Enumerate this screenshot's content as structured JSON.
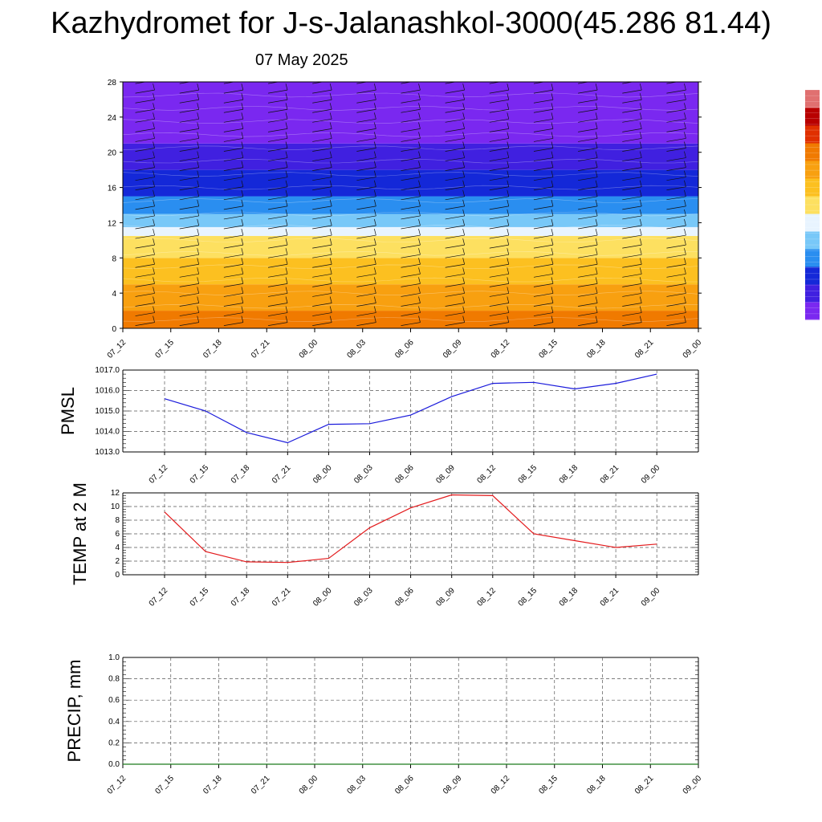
{
  "title": "Kazhydromet for J-s-Jalanashkol-3000(45.286 81.44)",
  "date": "07 May 2025",
  "colors": {
    "pmsl_line": "#1a1adb",
    "temp_line": "#e31a1c",
    "precip_line": "#1a7a1a",
    "grid": "#555555"
  },
  "chart_data": [
    {
      "type": "heatmap",
      "name": "cross-section",
      "x": [
        "07_12",
        "07_15",
        "07_18",
        "07_21",
        "08_00",
        "08_03",
        "08_06",
        "08_09",
        "08_12",
        "08_15",
        "08_18",
        "08_21",
        "09_00"
      ],
      "ylim": [
        0,
        28
      ],
      "yticks": [
        0,
        4,
        8,
        12,
        16,
        20,
        24,
        28
      ],
      "bands": [
        {
          "from": 0,
          "to": 2,
          "color": "#f07a00"
        },
        {
          "from": 2,
          "to": 5,
          "color": "#f8a010"
        },
        {
          "from": 5,
          "to": 8,
          "color": "#fcc020"
        },
        {
          "from": 8,
          "to": 10.5,
          "color": "#fde060"
        },
        {
          "from": 10.5,
          "to": 11.5,
          "color": "#e8f4ff"
        },
        {
          "from": 11.5,
          "to": 13,
          "color": "#78c8f8"
        },
        {
          "from": 13,
          "to": 15,
          "color": "#2a8ef0"
        },
        {
          "from": 15,
          "to": 18,
          "color": "#1428d8"
        },
        {
          "from": 18,
          "to": 21,
          "color": "#4020e0"
        },
        {
          "from": 21,
          "to": 28,
          "color": "#7a28f0"
        }
      ],
      "colorbar": [
        "#7a28f0",
        "#4020e0",
        "#1428d8",
        "#2a8ef0",
        "#78c8f8",
        "#e8f4ff",
        "#fde060",
        "#fcc020",
        "#f8a010",
        "#f07a00",
        "#e03000",
        "#b80000",
        "#e07070"
      ]
    },
    {
      "type": "line",
      "ylabel": "PMSL",
      "x": [
        "07_12",
        "07_15",
        "07_18",
        "07_21",
        "08_00",
        "08_03",
        "08_06",
        "08_09",
        "08_12",
        "08_15",
        "08_18",
        "08_21",
        "09_00"
      ],
      "values": [
        1015.6,
        1015.0,
        1013.95,
        1013.45,
        1014.35,
        1014.38,
        1014.8,
        1015.7,
        1016.35,
        1016.4,
        1016.08,
        1016.35,
        1016.8
      ],
      "ylim": [
        1013.0,
        1017.0
      ],
      "yticks": [
        "1013.0",
        "1014.0",
        "1015.0",
        "1016.0",
        "1017.0"
      ]
    },
    {
      "type": "line",
      "ylabel": "TEMP at 2 M",
      "x": [
        "07_12",
        "07_15",
        "07_18",
        "07_21",
        "08_00",
        "08_03",
        "08_06",
        "08_09",
        "08_12",
        "08_15",
        "08_18",
        "08_21",
        "09_00"
      ],
      "values": [
        9.2,
        3.4,
        1.9,
        1.8,
        2.4,
        6.9,
        9.8,
        11.7,
        11.6,
        6.0,
        5.0,
        4.0,
        4.5
      ],
      "ylim": [
        0,
        12
      ],
      "yticks": [
        "0",
        "2",
        "4",
        "6",
        "8",
        "10",
        "12"
      ]
    },
    {
      "type": "line",
      "ylabel": "PRECIP, mm",
      "x": [
        "07_12",
        "07_15",
        "07_18",
        "07_21",
        "08_00",
        "08_03",
        "08_06",
        "08_09",
        "08_12",
        "08_15",
        "08_18",
        "08_21",
        "09_00"
      ],
      "values": [
        0,
        0,
        0,
        0,
        0,
        0,
        0,
        0,
        0,
        0,
        0,
        0,
        0
      ],
      "ylim": [
        0.0,
        1.0
      ],
      "yticks": [
        "0.0",
        "0.2",
        "0.4",
        "0.6",
        "0.8",
        "1.0"
      ]
    }
  ]
}
